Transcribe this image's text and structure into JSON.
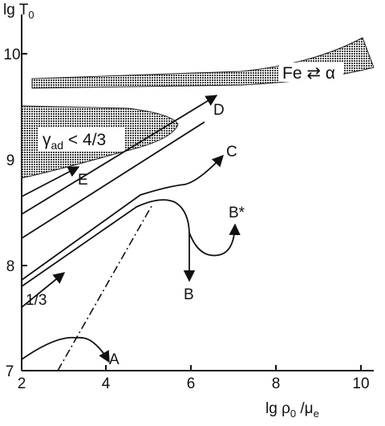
{
  "axes": {
    "y_title_main": "lg T",
    "y_title_sub": "0",
    "x_title_a": "lg ρ",
    "x_title_b": "0",
    "x_title_c": " /μ",
    "x_title_d": "e",
    "x_ticks": [
      "2",
      "4",
      "6",
      "8",
      "10"
    ],
    "y_ticks": [
      "7",
      "8",
      "9",
      "10"
    ]
  },
  "regions": {
    "fe_label": "Fe ⇄ α",
    "gamma_label": "γ",
    "gamma_sub": "ad",
    "gamma_rest": " < 4/3"
  },
  "curves": {
    "A": "A",
    "B": "B",
    "B_star": "B*",
    "C": "C",
    "D": "D",
    "E": "E",
    "slope": "1/3"
  },
  "colors": {
    "ink": "#111111",
    "stipple": "#555555",
    "background": "#ffffff"
  }
}
